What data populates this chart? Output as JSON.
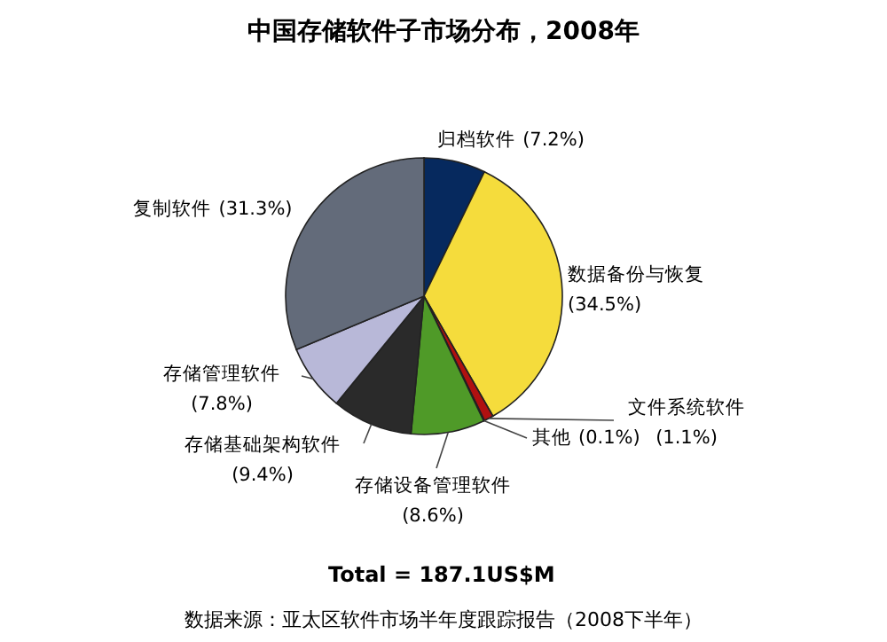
{
  "chart_data": {
    "type": "pie",
    "title": "中国存储软件子市场分布，2008年",
    "categories": [
      "归档软件",
      "数据备份与恢复",
      "文件系统软件",
      "其他",
      "存储设备管理软件",
      "存储基础架构软件",
      "存储管理软件",
      "复制软件"
    ],
    "values": [
      7.2,
      34.5,
      1.1,
      0.1,
      8.6,
      9.4,
      7.8,
      31.3
    ],
    "colors": [
      "#06295e",
      "#f5dc3c",
      "#b01010",
      "#9a9a9a",
      "#4f9a28",
      "#2a2a2a",
      "#b8b8d8",
      "#636b7a"
    ],
    "value_labels": [
      "(7.2%)",
      "(34.5%)",
      "(1.1%)",
      "(0.1%)",
      "(8.6%)",
      "(9.4%)",
      "(7.8%)",
      "(31.3%)"
    ],
    "annotations": [
      "Total = 187.1US$M",
      "数据来源：亚太区软件市场半年度跟踪报告（2008下半年）"
    ]
  }
}
